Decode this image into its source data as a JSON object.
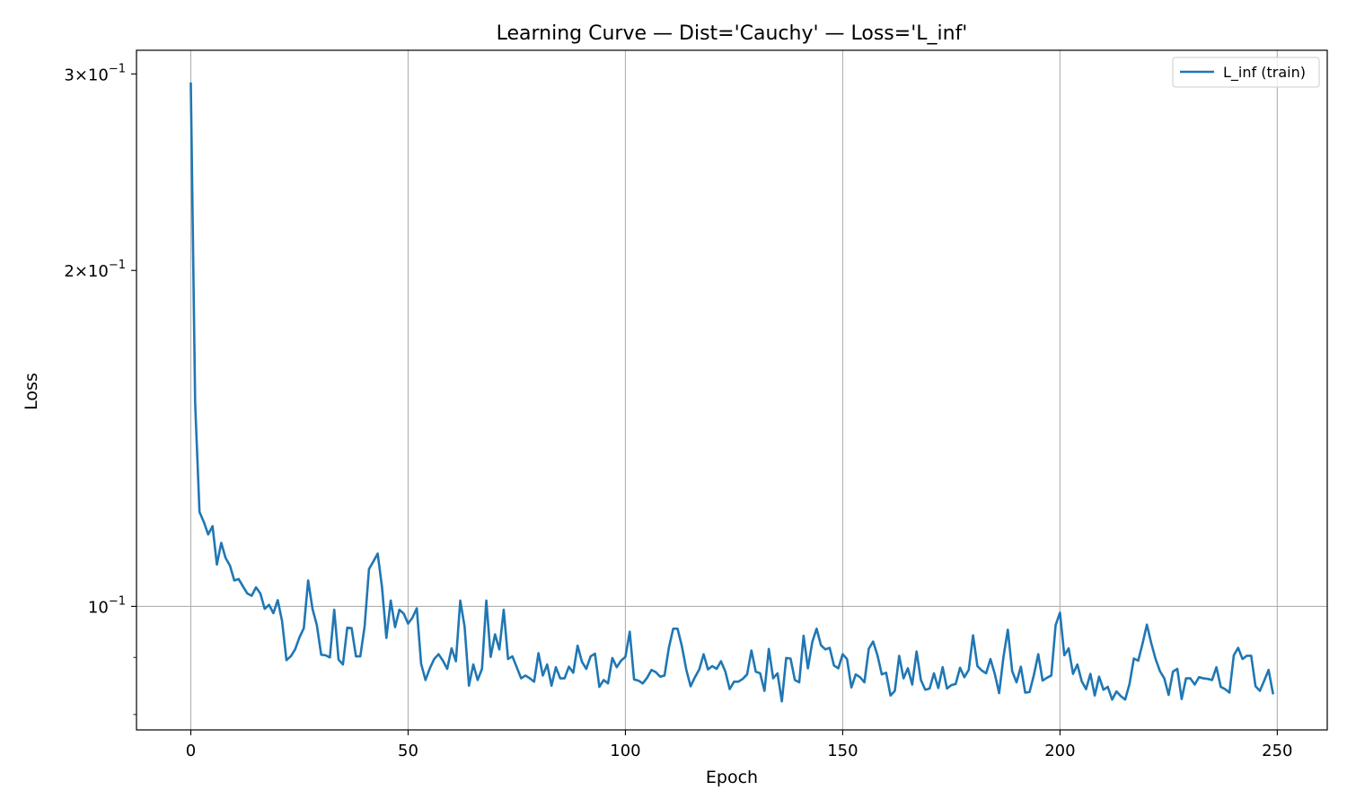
{
  "chart_data": {
    "type": "line",
    "title": "Learning Curve — Dist='Cauchy' — Loss='L_inf'",
    "xlabel": "Epoch",
    "ylabel": "Loss",
    "yscale": "log",
    "xlim": [
      -12.5,
      261.5
    ],
    "ylim": [
      0.0775,
      0.315
    ],
    "grid": true,
    "legend_position": "top-right",
    "x_ticks": [
      0,
      50,
      100,
      150,
      200,
      250
    ],
    "x_tick_labels": [
      "0",
      "50",
      "100",
      "150",
      "200",
      "250"
    ],
    "y_ticks": [
      0.1,
      0.2,
      0.3
    ],
    "y_tick_labels": [
      {
        "base": "10",
        "exp": "−1",
        "mantissa": ""
      },
      {
        "base": "10",
        "exp": "−1",
        "mantissa": "2"
      },
      {
        "base": "10",
        "exp": "−1",
        "mantissa": "3"
      }
    ],
    "series": [
      {
        "name": "L_inf (train)",
        "color": "#1f77b4",
        "x_start": 0,
        "x_step": 1,
        "values": [
          0.294,
          0.152,
          0.1215,
          0.119,
          0.116,
          0.118,
          0.109,
          0.114,
          0.1105,
          0.1088,
          0.1055,
          0.1058,
          0.1042,
          0.1027,
          0.1022,
          0.104,
          0.1027,
          0.0995,
          0.1003,
          0.0986,
          0.1013,
          0.097,
          0.0895,
          0.0902,
          0.0915,
          0.0938,
          0.0956,
          0.1055,
          0.0995,
          0.0962,
          0.0905,
          0.0904,
          0.09,
          0.0993,
          0.0896,
          0.0887,
          0.0957,
          0.0956,
          0.0902,
          0.0902,
          0.096,
          0.108,
          0.1097,
          0.1115,
          0.104,
          0.0937,
          0.1012,
          0.0958,
          0.0993,
          0.0985,
          0.0965,
          0.0977,
          0.0996,
          0.0888,
          0.0859,
          0.088,
          0.0897,
          0.0906,
          0.0894,
          0.0879,
          0.0917,
          0.0893,
          0.1012,
          0.0959,
          0.0849,
          0.0887,
          0.0859,
          0.0879,
          0.1012,
          0.0901,
          0.0944,
          0.0915,
          0.0993,
          0.0897,
          0.0902,
          0.0882,
          0.0862,
          0.0867,
          0.0862,
          0.0856,
          0.0908,
          0.0867,
          0.0887,
          0.0849,
          0.0882,
          0.0862,
          0.0862,
          0.0883,
          0.0872,
          0.0922,
          0.0892,
          0.0879,
          0.0902,
          0.0907,
          0.0847,
          0.0859,
          0.0853,
          0.0899,
          0.0882,
          0.0894,
          0.0901,
          0.0949,
          0.086,
          0.0858,
          0.0853,
          0.0863,
          0.0877,
          0.0873,
          0.0865,
          0.0867,
          0.0918,
          0.0955,
          0.0955,
          0.0921,
          0.0878,
          0.0848,
          0.0864,
          0.0878,
          0.0906,
          0.0878,
          0.0884,
          0.0879,
          0.0893,
          0.0874,
          0.0843,
          0.0856,
          0.0856,
          0.0861,
          0.0869,
          0.0913,
          0.0874,
          0.0871,
          0.084,
          0.0916,
          0.0862,
          0.0871,
          0.0822,
          0.0899,
          0.0898,
          0.0859,
          0.0855,
          0.0941,
          0.088,
          0.0929,
          0.0955,
          0.0923,
          0.0915,
          0.0918,
          0.0885,
          0.088,
          0.0906,
          0.0897,
          0.0846,
          0.0869,
          0.0864,
          0.0855,
          0.0916,
          0.093,
          0.0904,
          0.0869,
          0.0872,
          0.0832,
          0.084,
          0.0903,
          0.0862,
          0.088,
          0.0851,
          0.0911,
          0.0859,
          0.0842,
          0.0844,
          0.0871,
          0.0845,
          0.0882,
          0.0844,
          0.085,
          0.0852,
          0.0881,
          0.0864,
          0.0877,
          0.0942,
          0.0884,
          0.0876,
          0.0871,
          0.0897,
          0.087,
          0.0836,
          0.0901,
          0.0953,
          0.0875,
          0.0855,
          0.0883,
          0.0837,
          0.0838,
          0.0868,
          0.0906,
          0.0858,
          0.0863,
          0.0867,
          0.0962,
          0.0987,
          0.0904,
          0.0917,
          0.087,
          0.0887,
          0.0857,
          0.0843,
          0.087,
          0.0832,
          0.0865,
          0.0842,
          0.0847,
          0.0825,
          0.0839,
          0.0831,
          0.0825,
          0.0852,
          0.0898,
          0.0894,
          0.0926,
          0.0963,
          0.0927,
          0.0897,
          0.0875,
          0.0862,
          0.0833,
          0.0874,
          0.0879,
          0.0826,
          0.0862,
          0.0862,
          0.0851,
          0.0864,
          0.0862,
          0.0861,
          0.0859,
          0.0882,
          0.0847,
          0.0843,
          0.0837,
          0.0904,
          0.0918,
          0.0897,
          0.0903,
          0.0903,
          0.0848,
          0.084,
          0.0858,
          0.0877,
          0.0836
        ]
      }
    ]
  }
}
